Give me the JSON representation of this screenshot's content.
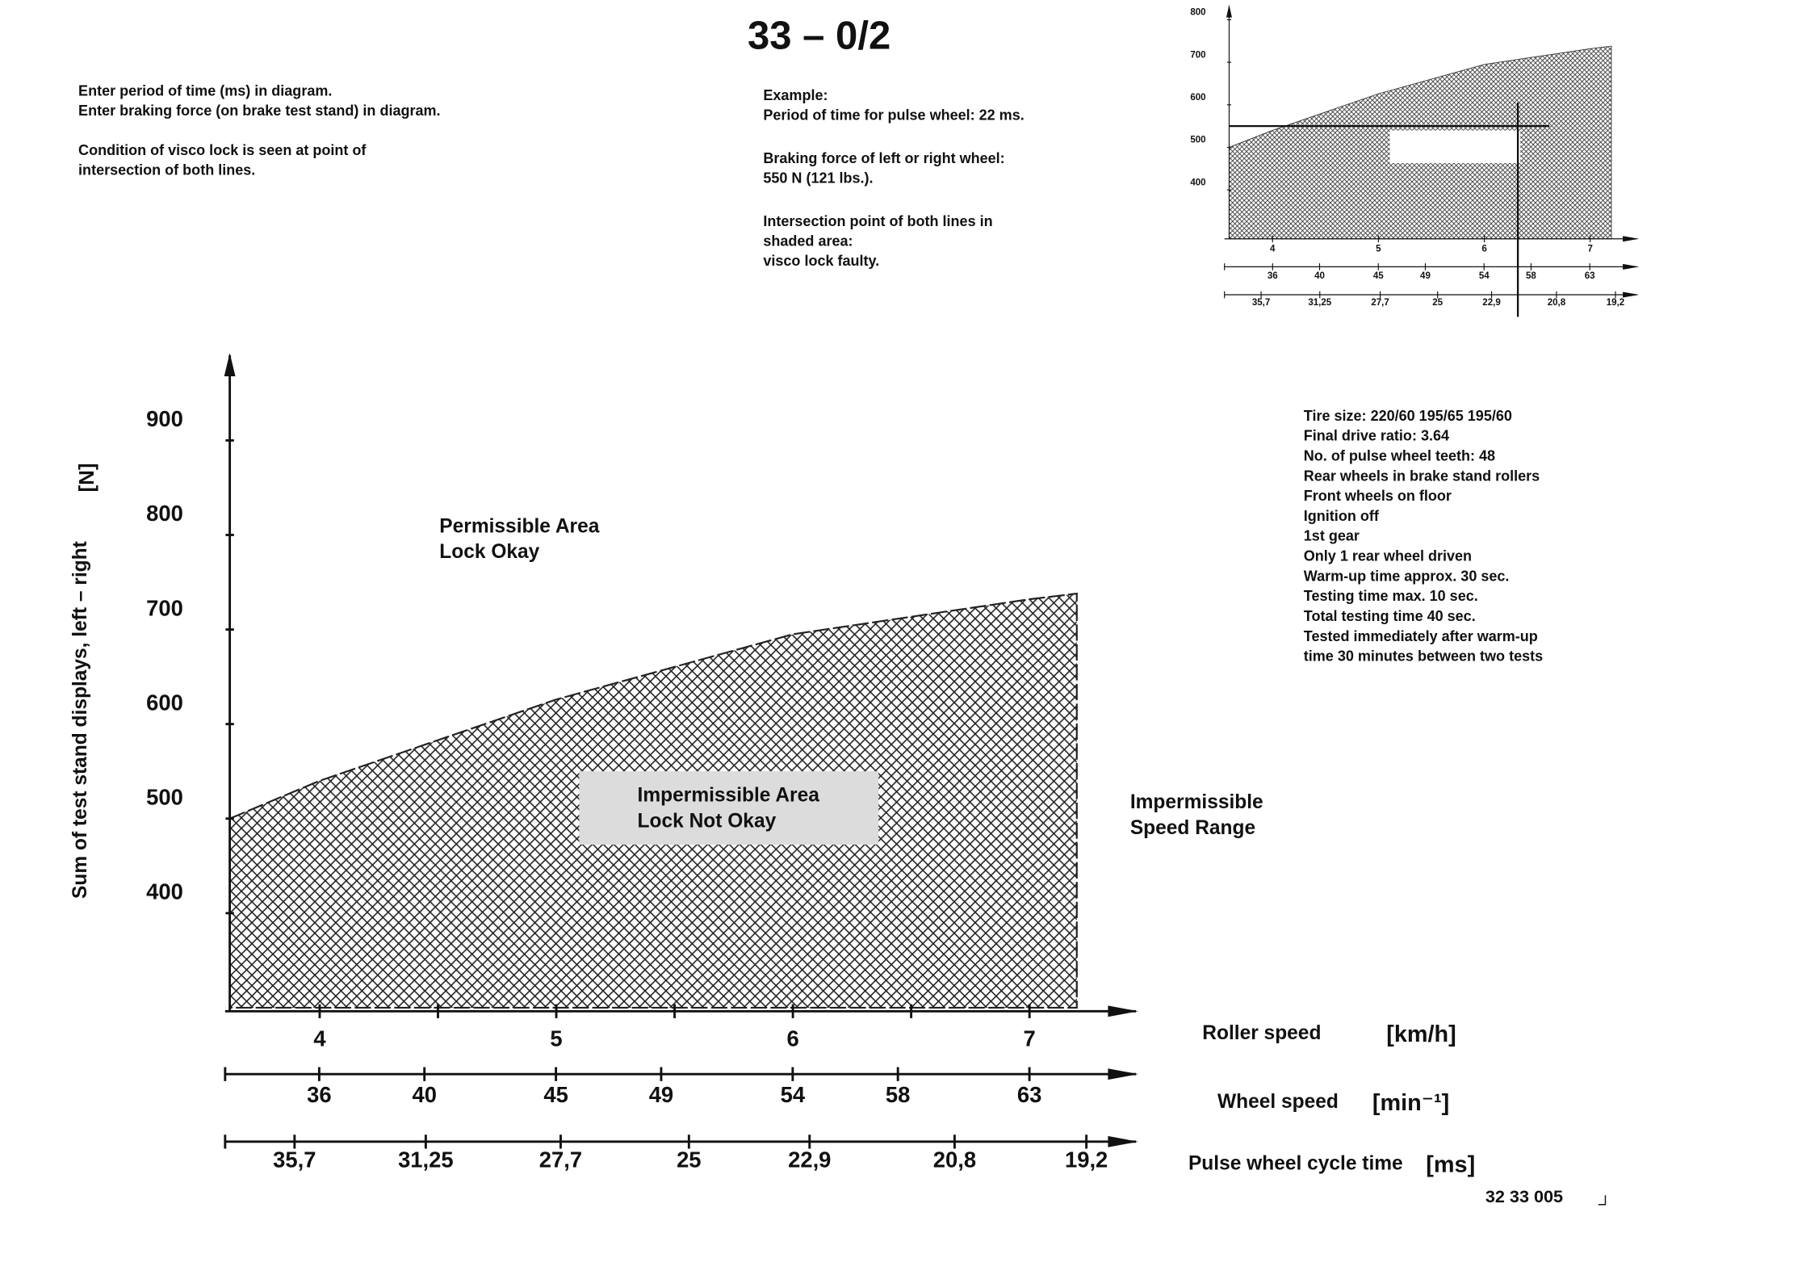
{
  "page_number": "33 – 0/2",
  "instructions": [
    [
      "Enter period of time (ms) in diagram.",
      "Enter braking force (on brake test stand) in diagram."
    ],
    [
      "Condition of visco lock is seen at point of",
      "intersection of both lines."
    ]
  ],
  "example": [
    [
      "Example:",
      "Period of time for pulse wheel: 22 ms."
    ],
    [
      "Braking force of left or right  wheel:",
      "550 N (121 lbs.)."
    ],
    [
      "Intersection point of both lines in",
      "shaded area:",
      "visco lock faulty."
    ]
  ],
  "specifications": [
    "Tire size:  220/60  195/65  195/60",
    "Final drive ratio: 3.64",
    "No. of pulse wheel teeth: 48",
    "Rear wheels in brake stand rollers",
    "Front wheels on floor",
    "Ignition off",
    "1st gear",
    "Only 1 rear wheel driven",
    "Warm-up time approx. 30 sec.",
    "Testing time max. 10 sec.",
    "Total testing time 40 sec.",
    "Tested immediately after warm-up",
    "time 30 minutes between two tests"
  ],
  "figure_number": "32 33 005",
  "chart_data": [
    {
      "type": "area",
      "color": "#222222",
      "ylabel": "Sum of test stand displays, left – right",
      "yunit": "[N]",
      "x_axis_labels": [
        {
          "name": "Roller speed",
          "unit": "[km/h]"
        },
        {
          "name": "Wheel speed",
          "unit": "[min⁻¹]"
        },
        {
          "name": "Pulse wheel cycle time",
          "unit": "[ms]"
        }
      ],
      "annotations": [
        [
          "Permissible Area",
          "Lock Okay"
        ],
        [
          "Impermissible Area",
          "Lock Not Okay"
        ],
        [
          "Impermissible",
          "Speed Range"
        ]
      ],
      "x": [
        3.62,
        4,
        5,
        6,
        7,
        7.2
      ],
      "values": [
        500,
        540,
        626,
        695,
        732,
        738
      ],
      "xlim": [
        3.62,
        7.45
      ],
      "xticks": [
        4,
        5,
        6,
        7
      ],
      "xminorticks": [
        4.5,
        5.5,
        6.5
      ],
      "x2lim": [
        32.6,
        67.05
      ],
      "x2ticks": [
        36,
        40,
        45,
        49,
        54,
        58,
        63
      ],
      "x3scale": "reciprocal",
      "x3lim": [
        38.4,
        18.66
      ],
      "x3ticks": [
        {
          "value": 35.7,
          "label": "35,7"
        },
        {
          "value": 31.25,
          "label": "31,25"
        },
        {
          "value": 27.7,
          "label": "27,7"
        },
        25,
        {
          "value": 22.9,
          "label": "22,9"
        },
        {
          "value": 20.8,
          "label": "20,8"
        },
        {
          "value": 19.2,
          "label": "19,2"
        }
      ],
      "ylim": [
        300,
        990
      ],
      "yticks": [
        400,
        500,
        600,
        700,
        800,
        900
      ]
    },
    {
      "type": "area",
      "color": "#333333",
      "x": [
        3.59,
        4,
        5,
        6,
        7,
        7.2
      ],
      "values": [
        500,
        540,
        626,
        695,
        732,
        738
      ],
      "xlim": [
        3.59,
        7.44
      ],
      "xticks": [
        4,
        5,
        6,
        7
      ],
      "x2lim": [
        32.3,
        67.0
      ],
      "x2ticks": [
        36,
        40,
        45,
        49,
        54,
        58,
        63
      ],
      "x3scale": "reciprocal",
      "x3lim": [
        38.7,
        18.68
      ],
      "x3ticks": [
        {
          "value": 35.7,
          "label": "35,7"
        },
        {
          "value": 31.25,
          "label": "31,25"
        },
        {
          "value": 27.7,
          "label": "27,7"
        },
        25,
        {
          "value": 22.9,
          "label": "22,9"
        },
        {
          "value": 20.8,
          "label": "20,8"
        },
        {
          "value": 19.2,
          "label": "19,2"
        }
      ],
      "ylim": [
        285,
        830
      ],
      "yticks": [
        400,
        500,
        600,
        700,
        800
      ],
      "example": {
        "period": 22,
        "force": 550
      }
    }
  ]
}
